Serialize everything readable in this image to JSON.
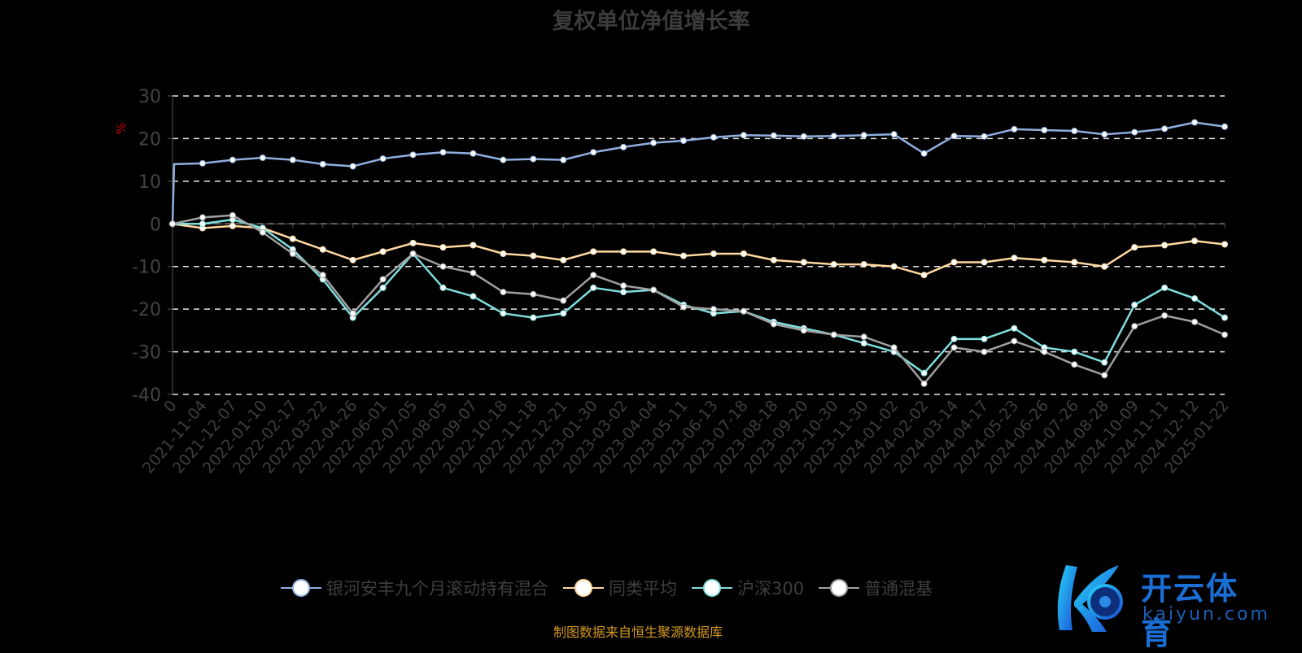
{
  "chart_data": {
    "type": "line",
    "title": "复权单位净值增长率",
    "ylabel": "%",
    "ylim": [
      -40,
      30
    ],
    "yticks": [
      30,
      20,
      10,
      0,
      -10,
      -20,
      -30,
      -40
    ],
    "grid": true,
    "legend_position": "bottom",
    "categories": [
      "0",
      "2021-11-04",
      "2021-12-07",
      "2022-01-10",
      "2022-02-17",
      "2022-03-22",
      "2022-04-26",
      "2022-06-01",
      "2022-07-05",
      "2022-08-05",
      "2022-09-07",
      "2022-10-18",
      "2022-11-18",
      "2022-12-21",
      "2023-01-30",
      "2023-03-02",
      "2023-04-04",
      "2023-05-11",
      "2023-06-13",
      "2023-07-18",
      "2023-08-18",
      "2023-09-20",
      "2023-10-30",
      "2023-11-30",
      "2024-01-02",
      "2024-02-02",
      "2024-03-14",
      "2024-04-17",
      "2024-05-23",
      "2024-06-26",
      "2024-07-26",
      "2024-08-28",
      "2024-10-09",
      "2024-11-11",
      "2024-12-12",
      "2025-01-22"
    ],
    "series": [
      {
        "name": "银河安丰九个月滚动持有混合",
        "color": "#8fb0e0",
        "values": [
          0,
          14.2,
          15,
          15.5,
          15,
          14,
          13.5,
          15.3,
          16.2,
          16.8,
          16.5,
          15,
          15.2,
          15,
          16.8,
          18,
          19,
          19.5,
          20.3,
          20.8,
          20.7,
          20.5,
          20.6,
          20.8,
          21,
          16.5,
          20.6,
          20.5,
          22.2,
          22,
          21.8,
          21,
          21.5,
          22.3,
          23.8,
          22.8
        ]
      },
      {
        "name": "同类平均",
        "color": "#ffd9a0",
        "values": [
          0,
          -1,
          -0.5,
          -1,
          -3.5,
          -6,
          -8.5,
          -6.5,
          -4.5,
          -5.5,
          -5,
          -7,
          -7.5,
          -8.5,
          -6.5,
          -6.5,
          -6.5,
          -7.5,
          -7,
          -7,
          -8.5,
          -9,
          -9.5,
          -9.5,
          -10,
          -12,
          -9,
          -9,
          -8,
          -8.5,
          -9,
          -10,
          -5.5,
          -5,
          -4,
          -4.8
        ]
      },
      {
        "name": "沪深300",
        "color": "#7fdede",
        "values": [
          0,
          0,
          1,
          -1,
          -6,
          -13,
          -22,
          -15,
          -7,
          -15,
          -17,
          -21,
          -22,
          -21,
          -15,
          -16,
          -15.5,
          -19,
          -21,
          -20.5,
          -23,
          -24.5,
          -26,
          -28,
          -30,
          -35,
          -27,
          -27,
          -24.5,
          -29,
          -30,
          -32.5,
          -19,
          -15,
          -17.5,
          -22
        ]
      },
      {
        "name": "普通混基",
        "color": "#a0a0a0",
        "values": [
          0,
          1.5,
          2,
          -2,
          -7,
          -12,
          -21,
          -13,
          -7,
          -10,
          -11.5,
          -16,
          -16.5,
          -18,
          -12,
          -14.5,
          -15.5,
          -19.5,
          -20,
          -20.5,
          -23.5,
          -25,
          -26,
          -26.5,
          -29,
          -37.5,
          -29,
          -30,
          -27.5,
          -30,
          -33,
          -35.5,
          -24,
          -21.5,
          -23,
          -26
        ]
      }
    ]
  },
  "footer": "制图数据来自恒生聚源数据库",
  "logo": {
    "brand": "开云体育",
    "url": "kaiyun.com"
  }
}
